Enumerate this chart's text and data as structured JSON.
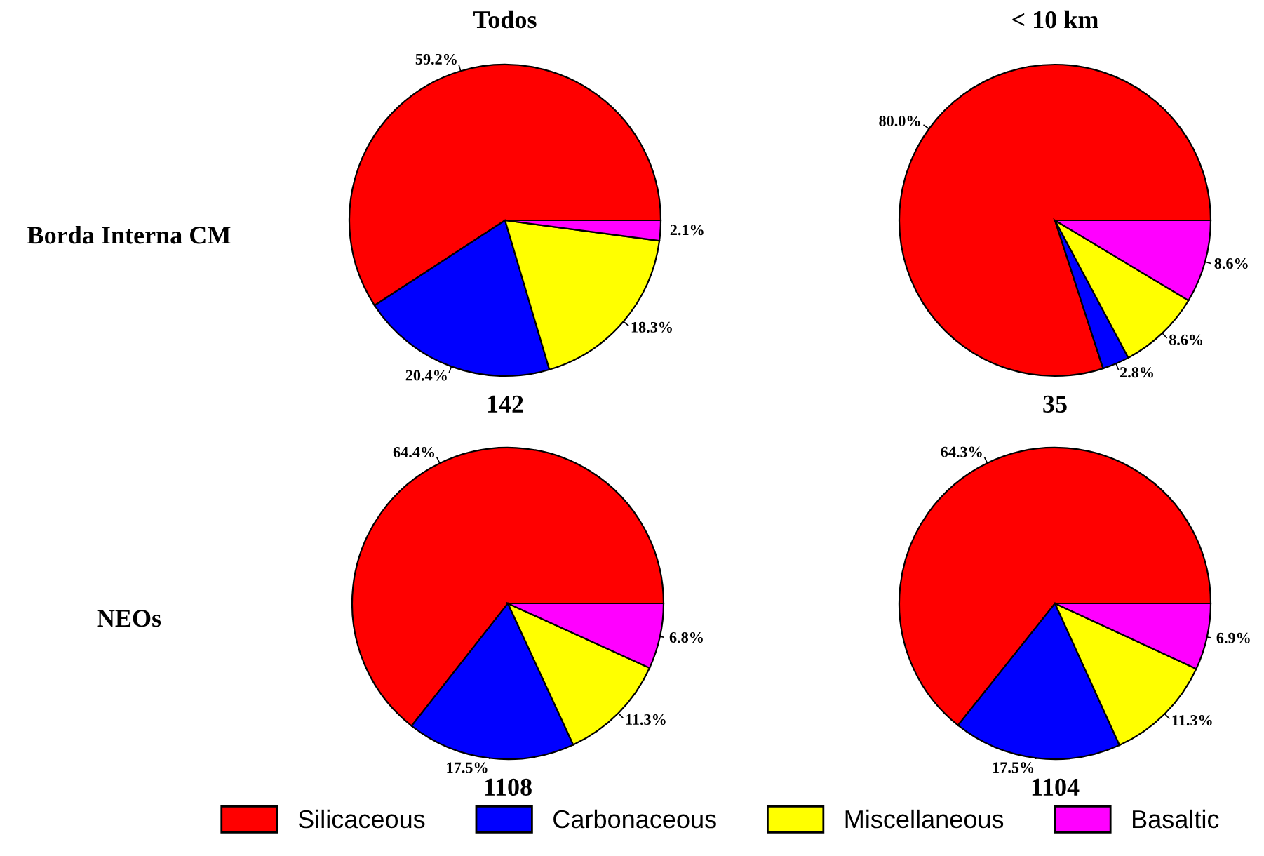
{
  "chart_data": [
    {
      "type": "pie",
      "title": "Todos",
      "ylabel": "Borda Interna CM",
      "xlabel": "142",
      "categories": [
        "Silicaceous",
        "Carbonaceous",
        "Miscellaneous",
        "Basaltic"
      ],
      "values": [
        59.2,
        20.4,
        18.3,
        2.1
      ],
      "value_labels": [
        "59.2%",
        "20.4%",
        "18.3%",
        "2.1%"
      ],
      "colors": [
        "#ff0000",
        "#0000ff",
        "#ffff00",
        "#ff00ff"
      ],
      "legend": "bottom"
    },
    {
      "type": "pie",
      "title": "< 10 km",
      "xlabel": "35",
      "categories": [
        null,
        null,
        null,
        null
      ],
      "values": [
        80.0,
        2.8,
        8.6,
        8.6
      ],
      "value_labels": [
        "80.0%",
        "2.8%",
        "8.6%",
        "8.6%"
      ],
      "colors": [
        "#ff0000",
        "#0000ff",
        "#ffff00",
        "#ff00ff"
      ]
    },
    {
      "type": "pie",
      "ylabel": "NEOs",
      "xlabel": "1108",
      "categories": [
        null,
        null,
        null,
        null
      ],
      "values": [
        64.4,
        17.5,
        11.3,
        6.8
      ],
      "value_labels": [
        "64.4%",
        "17.5%",
        "11.3%",
        "6.8%"
      ],
      "colors": [
        "#ff0000",
        "#0000ff",
        "#ffff00",
        "#ff00ff"
      ]
    },
    {
      "type": "pie",
      "xlabel": "1104",
      "categories": [
        null,
        null,
        null,
        null
      ],
      "values": [
        64.3,
        17.5,
        11.3,
        6.9
      ],
      "value_labels": [
        "64.3%",
        "17.5%",
        "11.3%",
        "6.9%"
      ],
      "colors": [
        "#ff0000",
        "#0000ff",
        "#ffff00",
        "#ff00ff"
      ]
    }
  ]
}
